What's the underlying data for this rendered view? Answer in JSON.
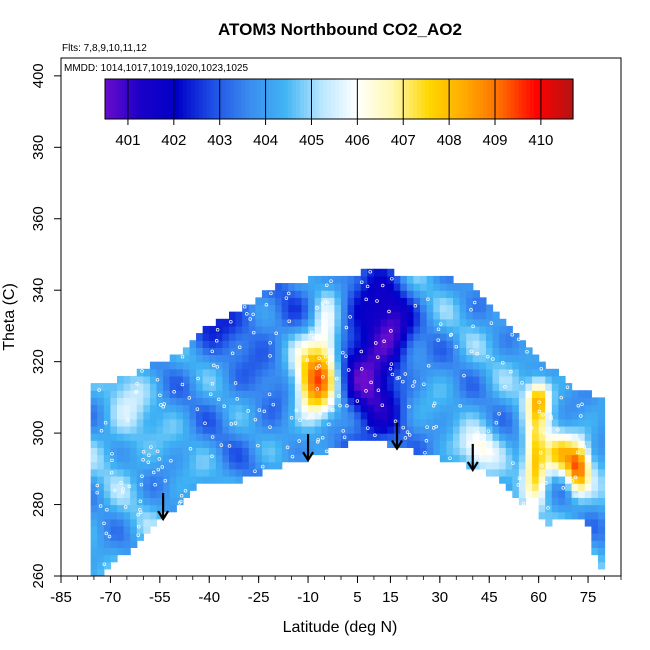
{
  "chart_data": {
    "type": "heatmap",
    "title": "ATOM3 Northbound CO2_AO2",
    "subtitle_flights": "Flts: 7,8,9,10,11,12",
    "subtitle_dates": "MMDD: 1014,1017,1019,1020,1023,1025",
    "xlabel": "Latitude (deg N)",
    "ylabel": "Theta (C)",
    "xlim": [
      -85,
      85
    ],
    "ylim": [
      260,
      405
    ],
    "x_ticks": [
      "-85",
      "-70",
      "-55",
      "-40",
      "-25",
      "-10",
      "5",
      "15",
      "30",
      "45",
      "60",
      "75"
    ],
    "y_ticks": [
      "260",
      "280",
      "300",
      "320",
      "340",
      "360",
      "380",
      "400"
    ],
    "colorbar": {
      "min": 400.5,
      "max": 410.7,
      "labels": [
        "401",
        "402",
        "403",
        "404",
        "405",
        "406",
        "407",
        "408",
        "409",
        "410"
      ],
      "colors": [
        "#6a0dcc",
        "#1a00c8",
        "#0000c8",
        "#1e50e6",
        "#3a8cf0",
        "#40b4f4",
        "#b8e6ff",
        "#ffffff",
        "#fff8b0",
        "#ffd700",
        "#ffaa00",
        "#ff6a00",
        "#ff0000",
        "#b41414"
      ]
    },
    "coverage_boundary": {
      "lat": [
        -74,
        -72,
        -66,
        -60,
        -52,
        -42,
        -34,
        -22,
        -10,
        0,
        8,
        14,
        22,
        30,
        38,
        46,
        52,
        56,
        58,
        60,
        62,
        66,
        70,
        74,
        78
      ],
      "theta_min": [
        259,
        262,
        266,
        272,
        278,
        286,
        285,
        290,
        293,
        296,
        299,
        297,
        295,
        293,
        291,
        288,
        284,
        278,
        287,
        277,
        274,
        276,
        275,
        277,
        263
      ]
    },
    "profile_markers_lat": [
      -54,
      -10,
      17,
      40
    ],
    "regions": [
      {
        "label": "background",
        "value": 404.2
      },
      {
        "label": "tropical high near -8 deg, theta 300-325",
        "lat": -8,
        "theta": 316,
        "value": 409.4
      },
      {
        "label": "low around 10 deg, theta 300-335",
        "lat": 9,
        "theta": 318,
        "value": 401.8
      },
      {
        "label": "high near 58-62 deg, theta 280-310",
        "lat": 60,
        "theta": 292,
        "value": 409.0
      },
      {
        "label": "high near 72 deg, theta 285-295",
        "lat": 72,
        "theta": 290,
        "value": 408.8
      }
    ]
  }
}
